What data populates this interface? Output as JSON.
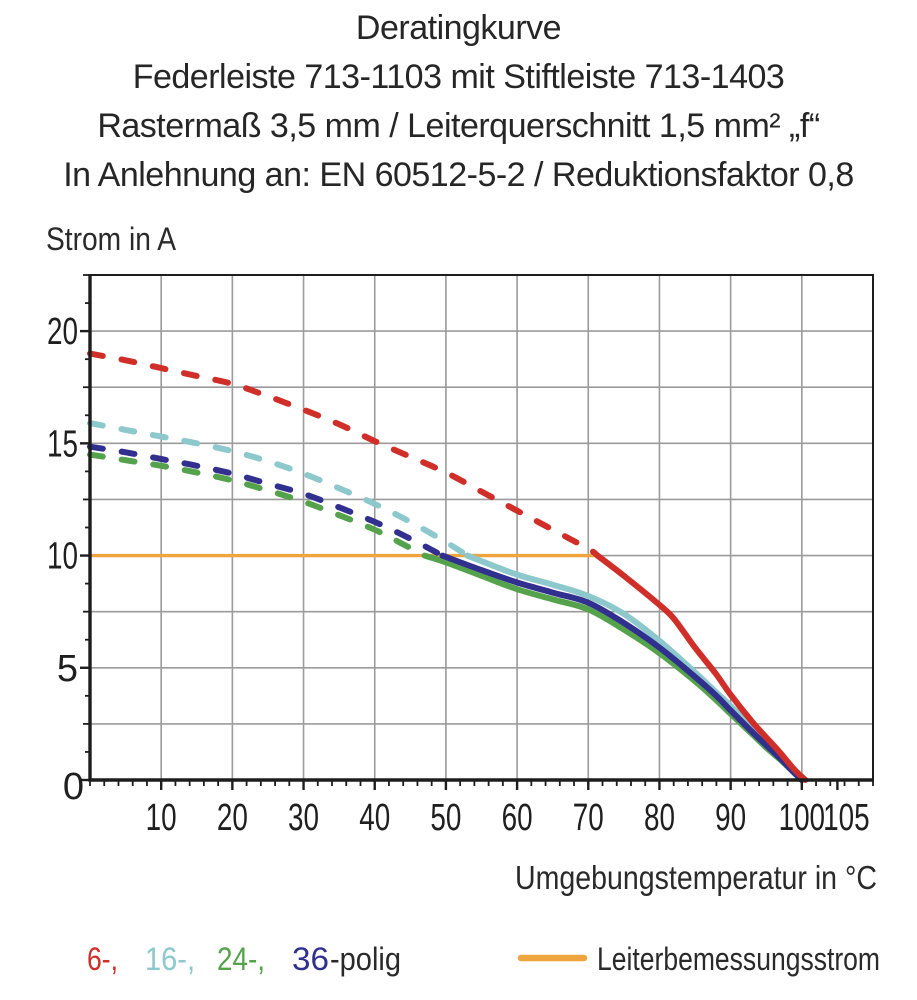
{
  "title": {
    "line1": "Deratingkurve",
    "line2": "Federleiste 713-1103 mit Stiftleiste 713-1403",
    "line3": "Rastermaß 3,5 mm / Leiterquerschnitt 1,5 mm² „f“",
    "line4": "In Anlehnung an: EN 60512-5-2 / Reduktionsfaktor 0,8"
  },
  "chart_data": {
    "type": "line",
    "title": "Deratingkurve",
    "xlabel": "Umgebungstemperatur in °C",
    "ylabel": "Strom in A",
    "xlim": [
      0,
      110
    ],
    "ylim": [
      0,
      22.5
    ],
    "x_grid_step": 10,
    "y_grid_step": 2.5,
    "x_minor_step": 2,
    "y_minor_step": 1.25,
    "x_ticks_labeled": [
      10,
      20,
      30,
      40,
      50,
      60,
      70,
      80,
      90,
      100,
      105
    ],
    "y_ticks_labeled": [
      0,
      5,
      10,
      15,
      20
    ],
    "grid_color": "#9b9b9b",
    "axis_color": "#1d1d1d",
    "tick_label_color": "#1f1f1f",
    "dash_note": "curves are dashed where current exceeds the 10 A rated conductor current",
    "series": [
      {
        "name": "6-polig",
        "color": "#cf2f28",
        "solid_from": 71.3,
        "points": [
          [
            0,
            19.0
          ],
          [
            5,
            18.7
          ],
          [
            10,
            18.35
          ],
          [
            15,
            18.0
          ],
          [
            20,
            17.65
          ],
          [
            25,
            17.1
          ],
          [
            30,
            16.5
          ],
          [
            35,
            15.85
          ],
          [
            40,
            15.1
          ],
          [
            45,
            14.4
          ],
          [
            50,
            13.7
          ],
          [
            55,
            12.85
          ],
          [
            60,
            12.0
          ],
          [
            65,
            11.15
          ],
          [
            70,
            10.3
          ],
          [
            71.3,
            10.0
          ],
          [
            75,
            9.1
          ],
          [
            80,
            7.8
          ],
          [
            82,
            7.2
          ],
          [
            85,
            5.9
          ],
          [
            88,
            4.7
          ],
          [
            90,
            3.8
          ],
          [
            93,
            2.6
          ],
          [
            95,
            1.9
          ],
          [
            97,
            1.2
          ],
          [
            99,
            0.45
          ],
          [
            100.5,
            0
          ]
        ]
      },
      {
        "name": "16-polig",
        "color": "#8cc8cc",
        "solid_from": 53,
        "points": [
          [
            0,
            15.9
          ],
          [
            5,
            15.6
          ],
          [
            10,
            15.3
          ],
          [
            15,
            15.0
          ],
          [
            20,
            14.65
          ],
          [
            25,
            14.2
          ],
          [
            30,
            13.65
          ],
          [
            35,
            13.0
          ],
          [
            40,
            12.3
          ],
          [
            45,
            11.5
          ],
          [
            50,
            10.6
          ],
          [
            53,
            10.0
          ],
          [
            55,
            9.75
          ],
          [
            60,
            9.15
          ],
          [
            65,
            8.7
          ],
          [
            70,
            8.2
          ],
          [
            75,
            7.4
          ],
          [
            80,
            6.2
          ],
          [
            85,
            4.8
          ],
          [
            88,
            3.9
          ],
          [
            90,
            3.3
          ],
          [
            93,
            2.3
          ],
          [
            95,
            1.7
          ],
          [
            97,
            1.05
          ],
          [
            99,
            0.35
          ],
          [
            100,
            0
          ]
        ]
      },
      {
        "name": "24-polig",
        "color": "#55a24d",
        "solid_from": 47,
        "points": [
          [
            0,
            14.5
          ],
          [
            5,
            14.25
          ],
          [
            10,
            14.0
          ],
          [
            15,
            13.7
          ],
          [
            20,
            13.35
          ],
          [
            25,
            12.9
          ],
          [
            30,
            12.4
          ],
          [
            35,
            11.8
          ],
          [
            40,
            11.15
          ],
          [
            44,
            10.5
          ],
          [
            47,
            10.0
          ],
          [
            50,
            9.7
          ],
          [
            55,
            9.1
          ],
          [
            60,
            8.5
          ],
          [
            65,
            8.05
          ],
          [
            70,
            7.6
          ],
          [
            75,
            6.7
          ],
          [
            80,
            5.65
          ],
          [
            85,
            4.4
          ],
          [
            88,
            3.55
          ],
          [
            90,
            2.95
          ],
          [
            93,
            2.05
          ],
          [
            95,
            1.45
          ],
          [
            97,
            0.9
          ],
          [
            99,
            0.3
          ],
          [
            100,
            0
          ]
        ]
      },
      {
        "name": "36-polig",
        "color": "#31308f",
        "solid_from": 49.5,
        "points": [
          [
            0,
            14.85
          ],
          [
            5,
            14.6
          ],
          [
            10,
            14.3
          ],
          [
            15,
            14.0
          ],
          [
            20,
            13.65
          ],
          [
            25,
            13.2
          ],
          [
            30,
            12.75
          ],
          [
            35,
            12.15
          ],
          [
            40,
            11.5
          ],
          [
            45,
            10.75
          ],
          [
            49.5,
            10.0
          ],
          [
            55,
            9.35
          ],
          [
            60,
            8.8
          ],
          [
            65,
            8.35
          ],
          [
            70,
            7.9
          ],
          [
            75,
            7.0
          ],
          [
            80,
            5.9
          ],
          [
            85,
            4.6
          ],
          [
            88,
            3.75
          ],
          [
            90,
            3.1
          ],
          [
            93,
            2.15
          ],
          [
            95,
            1.55
          ],
          [
            97,
            0.95
          ],
          [
            99,
            0.3
          ],
          [
            100,
            0
          ]
        ]
      }
    ],
    "reference_line": {
      "label": "Leiterbemessungsstrom",
      "value_A": 10,
      "x_from": 0,
      "x_to": 71.3,
      "color": "#efa43e"
    }
  },
  "legend": {
    "items": [
      {
        "label": "6-,",
        "color": "#cf2f28"
      },
      {
        "label": "16-,",
        "color": "#8cc8cc"
      },
      {
        "label": "24-,",
        "color": "#55a24d"
      },
      {
        "label": "36",
        "color": "#31308f"
      }
    ],
    "suffix": "-polig",
    "suffix_color": "#2a2a2a",
    "reference": {
      "label": "Leiterbemessungsstrom",
      "color": "#efa43e",
      "text_color": "#2a2a2a"
    }
  }
}
